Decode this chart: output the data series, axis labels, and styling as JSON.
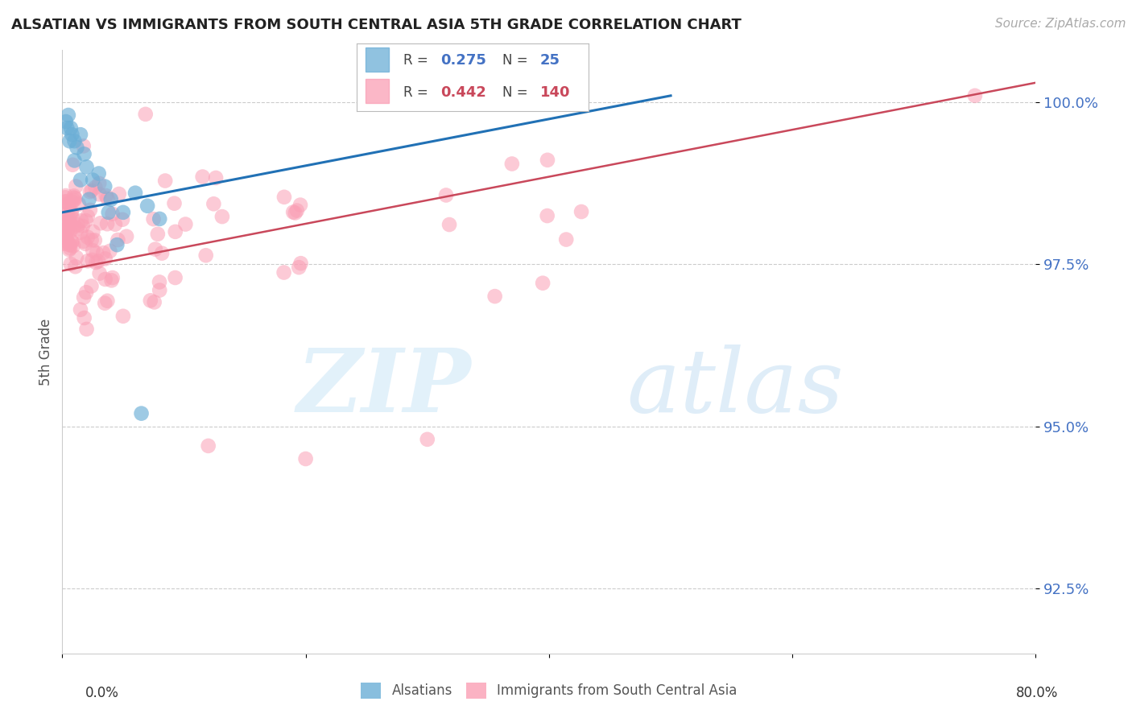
{
  "title": "ALSATIAN VS IMMIGRANTS FROM SOUTH CENTRAL ASIA 5TH GRADE CORRELATION CHART",
  "source": "Source: ZipAtlas.com",
  "ylabel": "5th Grade",
  "y_ticks": [
    92.5,
    95.0,
    97.5,
    100.0
  ],
  "y_tick_labels": [
    "92.5%",
    "95.0%",
    "97.5%",
    "100.0%"
  ],
  "x_min": 0.0,
  "x_max": 80.0,
  "y_min": 91.5,
  "y_max": 100.8,
  "legend_blue_r": "0.275",
  "legend_blue_n": "25",
  "legend_pink_r": "0.442",
  "legend_pink_n": "140",
  "blue_color": "#6baed6",
  "pink_color": "#fa9fb5",
  "blue_line_color": "#2171b5",
  "pink_line_color": "#c9485b",
  "blue_line_x0": 0.0,
  "blue_line_y0": 98.3,
  "blue_line_x1": 50.0,
  "blue_line_y1": 100.1,
  "pink_line_x0": 0.0,
  "pink_line_y0": 97.4,
  "pink_line_x1": 80.0,
  "pink_line_y1": 100.3
}
